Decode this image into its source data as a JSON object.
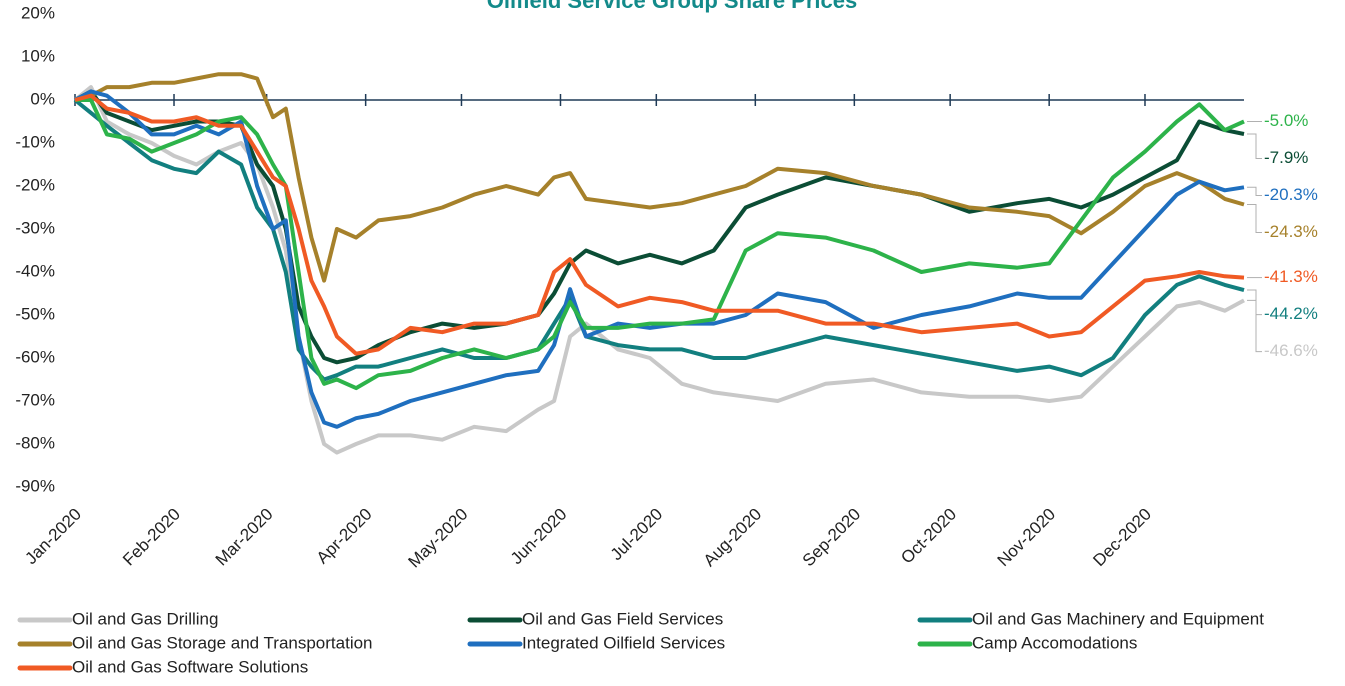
{
  "chart_data": {
    "type": "line",
    "title": "Oilfield Service Group Share Prices",
    "x": [
      0,
      5,
      10,
      17,
      24,
      31,
      38,
      45,
      52,
      57,
      62,
      66,
      70,
      74,
      78,
      82,
      88,
      95,
      105,
      115,
      125,
      135,
      145,
      150,
      155,
      160,
      170,
      180,
      190,
      200,
      210,
      220,
      235,
      250,
      265,
      280,
      295,
      305,
      315,
      325,
      335,
      345,
      352,
      360,
      366
    ],
    "xlim": [
      0,
      366
    ],
    "xticks": [
      {
        "value": 0,
        "label": "Jan-2020"
      },
      {
        "value": 31,
        "label": "Feb-2020"
      },
      {
        "value": 60,
        "label": "Mar-2020"
      },
      {
        "value": 91,
        "label": "Apr-2020"
      },
      {
        "value": 121,
        "label": "May-2020"
      },
      {
        "value": 152,
        "label": "Jun-2020"
      },
      {
        "value": 182,
        "label": "Jul-2020"
      },
      {
        "value": 213,
        "label": "Aug-2020"
      },
      {
        "value": 244,
        "label": "Sep-2020"
      },
      {
        "value": 274,
        "label": "Oct-2020"
      },
      {
        "value": 305,
        "label": "Nov-2020"
      },
      {
        "value": 335,
        "label": "Dec-2020"
      }
    ],
    "ylim": [
      -90,
      20
    ],
    "yticks": [
      {
        "value": -90,
        "label": "-90%"
      },
      {
        "value": -80,
        "label": "-80%"
      },
      {
        "value": -70,
        "label": "-70%"
      },
      {
        "value": -60,
        "label": "-60%"
      },
      {
        "value": -50,
        "label": "-50%"
      },
      {
        "value": -40,
        "label": "-40%"
      },
      {
        "value": -30,
        "label": "-30%"
      },
      {
        "value": -20,
        "label": "-20%"
      },
      {
        "value": -10,
        "label": "-10%"
      },
      {
        "value": 0,
        "label": "0%"
      },
      {
        "value": 10,
        "label": "10%"
      },
      {
        "value": 20,
        "label": "20%"
      }
    ],
    "series": [
      {
        "name": "Oil and Gas Drilling",
        "color": "#c8c8c8",
        "values": [
          0,
          3,
          -5,
          -8,
          -10,
          -13,
          -15,
          -12,
          -10,
          -15,
          -25,
          -35,
          -55,
          -70,
          -80,
          -82,
          -80,
          -78,
          -78,
          -79,
          -76,
          -77,
          -72,
          -70,
          -55,
          -52,
          -58,
          -60,
          -66,
          -68,
          -69,
          -70,
          -66,
          -65,
          -68,
          -69,
          -69,
          -70,
          -69,
          -62,
          -55,
          -48,
          -47,
          -49,
          -46.6
        ],
        "value_labels": [
          null,
          null,
          null,
          null,
          null,
          null,
          null,
          null,
          null,
          null,
          null,
          null,
          null,
          null,
          null,
          null,
          null,
          null,
          null,
          null,
          null,
          null,
          null,
          null,
          null,
          null,
          null,
          null,
          null,
          null,
          null,
          null,
          null,
          null,
          null,
          null,
          null,
          null,
          null,
          null,
          null,
          null,
          null,
          null,
          "-46.6%"
        ]
      },
      {
        "name": "Oil and Gas Field Services",
        "color": "#0b4d35",
        "values": [
          0,
          2,
          -3,
          -5,
          -7,
          -6,
          -5,
          -5,
          -6,
          -15,
          -20,
          -30,
          -48,
          -55,
          -60,
          -61,
          -60,
          -57,
          -54,
          -52,
          -53,
          -52,
          -50,
          -45,
          -38,
          -35,
          -38,
          -36,
          -38,
          -35,
          -25,
          -22,
          -18,
          -20,
          -22,
          -26,
          -24,
          -23,
          -25,
          -22,
          -18,
          -14,
          -5,
          -7,
          -7.9
        ],
        "value_labels": [
          null,
          null,
          null,
          null,
          null,
          null,
          null,
          null,
          null,
          null,
          null,
          null,
          null,
          null,
          null,
          null,
          null,
          null,
          null,
          null,
          null,
          null,
          null,
          null,
          null,
          null,
          null,
          null,
          null,
          null,
          null,
          null,
          null,
          null,
          null,
          null,
          null,
          null,
          null,
          null,
          null,
          null,
          null,
          null,
          "-7.9%"
        ]
      },
      {
        "name": "Oil and Gas Machinery and Equipment",
        "color": "#127f7f",
        "values": [
          0,
          -3,
          -6,
          -10,
          -14,
          -16,
          -17,
          -12,
          -15,
          -25,
          -30,
          -40,
          -58,
          -62,
          -65,
          -64,
          -62,
          -62,
          -60,
          -58,
          -60,
          -60,
          -58,
          -52,
          -46,
          -55,
          -57,
          -58,
          -58,
          -60,
          -60,
          -58,
          -55,
          -57,
          -59,
          -61,
          -63,
          -62,
          -64,
          -60,
          -50,
          -43,
          -41,
          -43,
          -44.2
        ],
        "value_labels": [
          null,
          null,
          null,
          null,
          null,
          null,
          null,
          null,
          null,
          null,
          null,
          null,
          null,
          null,
          null,
          null,
          null,
          null,
          null,
          null,
          null,
          null,
          null,
          null,
          null,
          null,
          null,
          null,
          null,
          null,
          null,
          null,
          null,
          null,
          null,
          null,
          null,
          null,
          null,
          null,
          null,
          null,
          null,
          null,
          "-44.2%"
        ]
      },
      {
        "name": "Oil and Gas Storage and Transportation",
        "color": "#a6812b",
        "values": [
          0,
          1,
          3,
          3,
          4,
          4,
          5,
          6,
          6,
          5,
          -4,
          -2,
          -18,
          -32,
          -42,
          -30,
          -32,
          -28,
          -27,
          -25,
          -22,
          -20,
          -22,
          -18,
          -17,
          -23,
          -24,
          -25,
          -24,
          -22,
          -20,
          -16,
          -17,
          -20,
          -22,
          -25,
          -26,
          -27,
          -31,
          -26,
          -20,
          -17,
          -19,
          -23,
          -24.3
        ],
        "value_labels": [
          null,
          null,
          null,
          null,
          null,
          null,
          null,
          null,
          null,
          null,
          null,
          null,
          null,
          null,
          null,
          null,
          null,
          null,
          null,
          null,
          null,
          null,
          null,
          null,
          null,
          null,
          null,
          null,
          null,
          null,
          null,
          null,
          null,
          null,
          null,
          null,
          null,
          null,
          null,
          null,
          null,
          null,
          null,
          null,
          "-24.3%"
        ]
      },
      {
        "name": "Integrated Oilfield Services",
        "color": "#1f6fbf",
        "values": [
          0,
          2,
          1,
          -3,
          -8,
          -8,
          -6,
          -8,
          -5,
          -20,
          -30,
          -28,
          -55,
          -68,
          -75,
          -76,
          -74,
          -73,
          -70,
          -68,
          -66,
          -64,
          -63,
          -57,
          -44,
          -55,
          -52,
          -53,
          -52,
          -52,
          -50,
          -45,
          -47,
          -53,
          -50,
          -48,
          -45,
          -46,
          -46,
          -38,
          -30,
          -22,
          -19,
          -21,
          -20.3
        ],
        "value_labels": [
          null,
          null,
          null,
          null,
          null,
          null,
          null,
          null,
          null,
          null,
          null,
          null,
          null,
          null,
          null,
          null,
          null,
          null,
          null,
          null,
          null,
          null,
          null,
          null,
          null,
          null,
          null,
          null,
          null,
          null,
          null,
          null,
          null,
          null,
          null,
          null,
          null,
          null,
          null,
          null,
          null,
          null,
          null,
          null,
          "-20.3%"
        ]
      },
      {
        "name": "Camp Accomodations",
        "color": "#2db34a",
        "values": [
          0,
          0,
          -8,
          -9,
          -12,
          -10,
          -8,
          -5,
          -4,
          -8,
          -15,
          -20,
          -40,
          -60,
          -66,
          -65,
          -67,
          -64,
          -63,
          -60,
          -58,
          -60,
          -58,
          -55,
          -47,
          -53,
          -53,
          -52,
          -52,
          -51,
          -35,
          -31,
          -32,
          -35,
          -40,
          -38,
          -39,
          -38,
          -28,
          -18,
          -12,
          -5,
          -1,
          -7,
          -5.0
        ],
        "value_labels": [
          null,
          null,
          null,
          null,
          null,
          null,
          null,
          null,
          null,
          null,
          null,
          null,
          null,
          null,
          null,
          null,
          null,
          null,
          null,
          null,
          null,
          null,
          null,
          null,
          null,
          null,
          null,
          null,
          null,
          null,
          null,
          null,
          null,
          null,
          null,
          null,
          null,
          null,
          null,
          null,
          null,
          null,
          null,
          null,
          "-5.0%"
        ]
      },
      {
        "name": "Oil and Gas Software Solutions",
        "color": "#f05a24",
        "values": [
          0,
          1,
          -2,
          -3,
          -5,
          -5,
          -4,
          -6,
          -6,
          -12,
          -18,
          -20,
          -30,
          -42,
          -48,
          -55,
          -59,
          -58,
          -53,
          -54,
          -52,
          -52,
          -50,
          -40,
          -37,
          -43,
          -48,
          -46,
          -47,
          -49,
          -49,
          -49,
          -52,
          -52,
          -54,
          -53,
          -52,
          -55,
          -54,
          -48,
          -42,
          -41,
          -40,
          -41,
          -41.3
        ],
        "value_labels": [
          null,
          null,
          null,
          null,
          null,
          null,
          null,
          null,
          null,
          null,
          null,
          null,
          null,
          null,
          null,
          null,
          null,
          null,
          null,
          null,
          null,
          null,
          null,
          null,
          null,
          null,
          null,
          null,
          null,
          null,
          null,
          null,
          null,
          null,
          null,
          null,
          null,
          null,
          null,
          null,
          null,
          null,
          null,
          null,
          "-41.3%"
        ]
      }
    ]
  }
}
